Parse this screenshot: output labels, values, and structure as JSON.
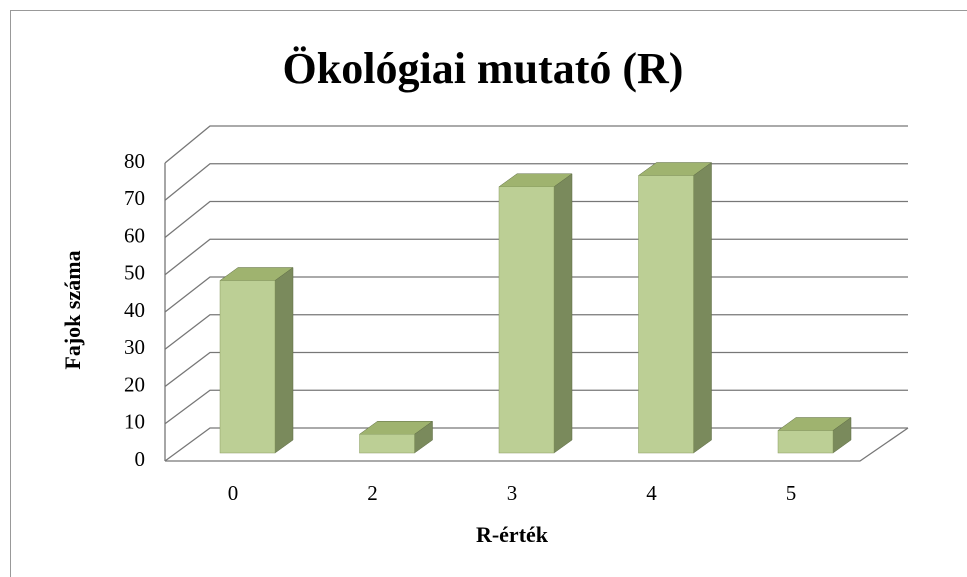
{
  "chart_data": {
    "type": "bar3d",
    "title": "Ökológiai mutató (R)",
    "x_label": "R-érték",
    "y_label": "Fajok száma",
    "categories": [
      "0",
      "2",
      "3",
      "4",
      "5"
    ],
    "values": [
      46,
      5,
      71,
      74,
      6
    ],
    "color": "#bccf95",
    "ylim": [
      0,
      80
    ],
    "yticks": [
      0,
      10,
      20,
      30,
      40,
      50,
      60,
      70,
      80
    ],
    "grid": true
  }
}
